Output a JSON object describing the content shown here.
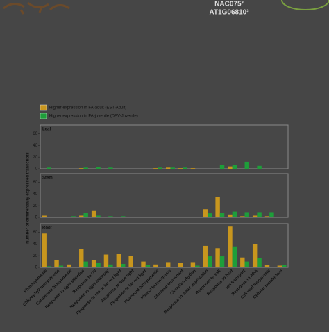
{
  "chart_data": {
    "type": "bar",
    "header": [
      "NAC075³",
      "AT1G06810³"
    ],
    "ylabel": "Number of differentially expressed transcripts",
    "legend": [
      {
        "name": "Higher expression in FA-adult (EST-Adult)",
        "color": "#c8961e"
      },
      {
        "name": "Higher expression in FA-juvenile (DEV-Juvenile)",
        "color": "#1e9e3a"
      }
    ],
    "categories": [
      "Photosynthesis",
      "Chlorophyll biosynthesis",
      "Carotenoid biosynthesis",
      "Response to light stimulus",
      "Response to UV",
      "Response to light intensity",
      "Response to red or far red light",
      "Response to blue light",
      "Response to far red light",
      "Flavonoid biosynthesis",
      "Phenol biosynthesis",
      "Stomatal movement",
      "Circadian rhythm",
      "Response to water deprivation",
      "Response to salt",
      "Response to heat",
      "Ion transport",
      "Response to ABA",
      "Cell wall biogenesis",
      "Cellular metabolism"
    ],
    "panels": [
      {
        "title": "Leaf",
        "ylim": [
          0,
          75
        ],
        "yticks": [
          0,
          20,
          40,
          60
        ],
        "values": [
          [
            0,
            0,
            0,
            1,
            0,
            0,
            0,
            0,
            0,
            1,
            2,
            1,
            1,
            0,
            0,
            4,
            0,
            0,
            0,
            0
          ],
          [
            2,
            0,
            0,
            2,
            3,
            2,
            0,
            0,
            0,
            2,
            2,
            2,
            0,
            0,
            7,
            7,
            12,
            5,
            0,
            0
          ]
        ]
      },
      {
        "title": "Stem",
        "ylim": [
          0,
          75
        ],
        "yticks": [
          0,
          20,
          40,
          60
        ],
        "values": [
          [
            3,
            1,
            1,
            3,
            11,
            0,
            1,
            1,
            1,
            1,
            1,
            1,
            1,
            14,
            35,
            5,
            2,
            3,
            2,
            1
          ],
          [
            1,
            1,
            2,
            8,
            3,
            2,
            2,
            1,
            0,
            0,
            0,
            1,
            1,
            7,
            8,
            10,
            9,
            9,
            9,
            0
          ]
        ]
      },
      {
        "title": "Root",
        "ylim": [
          0,
          75
        ],
        "yticks": [
          0,
          20,
          40,
          60
        ],
        "values": [
          [
            58,
            13,
            5,
            32,
            12,
            22,
            23,
            20,
            10,
            5,
            9,
            8,
            9,
            37,
            33,
            70,
            17,
            40,
            4,
            3
          ],
          [
            2,
            3,
            0,
            10,
            8,
            5,
            6,
            0,
            4,
            0,
            0,
            0,
            3,
            19,
            19,
            36,
            10,
            16,
            0,
            4
          ]
        ]
      }
    ]
  }
}
